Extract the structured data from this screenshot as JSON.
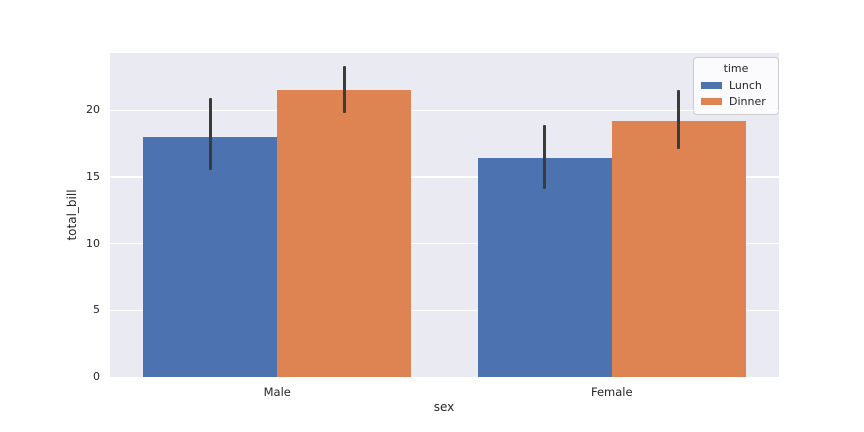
{
  "chart_data": {
    "type": "bar",
    "title": "",
    "xlabel": "sex",
    "ylabel": "total_bill",
    "categories": [
      "Male",
      "Female"
    ],
    "series": [
      {
        "name": "Lunch",
        "color": "#4c72b0",
        "values": [
          18.0,
          16.4
        ],
        "ci_low": [
          15.5,
          14.1
        ],
        "ci_high": [
          20.9,
          18.9
        ]
      },
      {
        "name": "Dinner",
        "color": "#dd8452",
        "values": [
          21.5,
          19.2
        ],
        "ci_low": [
          19.8,
          17.1
        ],
        "ci_high": [
          23.3,
          21.5
        ]
      }
    ],
    "yticks": [
      0,
      5,
      10,
      15,
      20
    ],
    "ylim": [
      0,
      24.3
    ],
    "grid": true,
    "group_width_fraction": 0.8,
    "legend": {
      "title": "time",
      "position": "upper right"
    }
  },
  "style": {
    "figure_background": "#ffffff",
    "axes_background": "#eaeaf2",
    "grid_color": "#ffffff",
    "text_color": "#262626",
    "errorbar_color": "#3b3b3b"
  }
}
